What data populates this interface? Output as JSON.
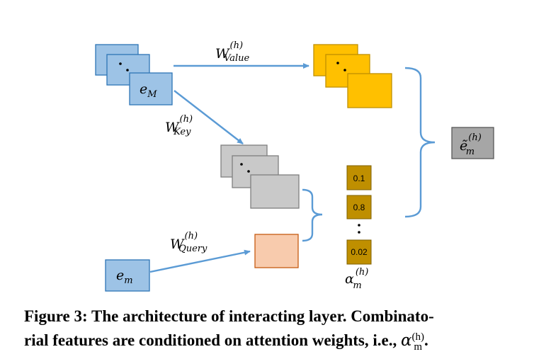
{
  "labels": {
    "e_M_base": "e",
    "e_M_sub": "M",
    "e_m_base": "e",
    "e_m_sub": "m",
    "w_value_base": "W",
    "w_value_sup": "(h)",
    "w_value_sub": "Value",
    "w_key_base": "W",
    "w_key_sup": "(h)",
    "w_key_sub": "Key",
    "w_query_base": "W",
    "w_query_sup": "(h)",
    "w_query_sub": "Query",
    "output_base": "ẽ",
    "output_sup": "(h)",
    "output_sub": "m",
    "alpha_base": "α",
    "alpha_sup": "(h)",
    "alpha_sub": "m"
  },
  "attention_weights": [
    "0.1",
    "0.8",
    "0.02"
  ],
  "caption": {
    "line1": "Figure 3: The architecture of interacting layer. Combinato-",
    "line2": "rial features are conditioned on attention weights, i.e., ",
    "alpha": "α",
    "alpha_sup": "(h)",
    "alpha_sub": "m",
    "end": "."
  },
  "colors": {
    "embedding": "#9dc3e6",
    "value": "#ffc000",
    "key": "#c9c9c9",
    "query": "#f8cbad",
    "output": "#a6a6a6",
    "attention": "#bf8f00",
    "arrow": "#5b9bd5"
  }
}
